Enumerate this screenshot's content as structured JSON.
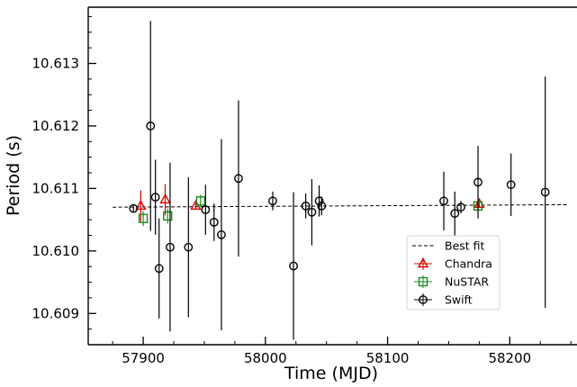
{
  "chart_data": {
    "type": "scatter",
    "xlabel": "Time (MJD)",
    "ylabel": "Period (s)",
    "xlim": [
      57855,
      58255
    ],
    "ylim": [
      10.6085,
      10.6139
    ],
    "x_ticks": [
      57900,
      58000,
      58100,
      58200
    ],
    "y_ticks": [
      10.609,
      10.61,
      10.611,
      10.612,
      10.613
    ],
    "grid": false,
    "legend_position": "lower-right",
    "best_fit": {
      "name": "Best fit",
      "x": [
        57875,
        58247
      ],
      "y": [
        10.6107,
        10.61074
      ],
      "color": "#000000"
    },
    "series": [
      {
        "name": "Chandra",
        "marker": "triangle",
        "color": "#e00000",
        "points": [
          {
            "x": 57898,
            "y": 10.61072,
            "err": 0.00025
          },
          {
            "x": 57918,
            "y": 10.61082,
            "err": 0.00025
          },
          {
            "x": 57943,
            "y": 10.61072,
            "err": 5e-05
          },
          {
            "x": 58175,
            "y": 10.61075,
            "err": 5e-05
          }
        ]
      },
      {
        "name": "NuSTAR",
        "marker": "square",
        "color": "#1a8a1a",
        "points": [
          {
            "x": 57900,
            "y": 10.61052,
            "err": 0.00012
          },
          {
            "x": 57920,
            "y": 10.61056,
            "err": 0.00012
          },
          {
            "x": 57947,
            "y": 10.6108,
            "err": 0.0001
          },
          {
            "x": 58174,
            "y": 10.61072,
            "err": 4e-05
          }
        ]
      },
      {
        "name": "Swift",
        "marker": "circle",
        "color": "#000000",
        "points": [
          {
            "x": 57892,
            "y": 10.61068,
            "err": 5e-05
          },
          {
            "x": 57906,
            "y": 10.612,
            "err": 0.00168
          },
          {
            "x": 57910,
            "y": 10.61086,
            "err": 0.0006
          },
          {
            "x": 57913,
            "y": 10.60972,
            "err": 0.0008
          },
          {
            "x": 57922,
            "y": 10.61006,
            "err": 0.00135
          },
          {
            "x": 57937,
            "y": 10.61006,
            "err": 0.00112
          },
          {
            "x": 57951,
            "y": 10.61066,
            "err": 0.0004
          },
          {
            "x": 57958,
            "y": 10.61046,
            "err": 0.0003
          },
          {
            "x": 57964,
            "y": 10.61026,
            "err": 0.00153
          },
          {
            "x": 57978,
            "y": 10.61116,
            "err": 0.00125
          },
          {
            "x": 58006,
            "y": 10.6108,
            "err": 0.00015
          },
          {
            "x": 58023,
            "y": 10.60976,
            "err": 0.00118
          },
          {
            "x": 58033,
            "y": 10.61072,
            "err": 0.0002
          },
          {
            "x": 58038,
            "y": 10.61062,
            "err": 0.00053
          },
          {
            "x": 58044,
            "y": 10.6108,
            "err": 0.00025
          },
          {
            "x": 58046,
            "y": 10.61072,
            "err": 0.00015
          },
          {
            "x": 58146,
            "y": 10.6108,
            "err": 0.00047
          },
          {
            "x": 58155,
            "y": 10.6106,
            "err": 0.00035
          },
          {
            "x": 58160,
            "y": 10.6107,
            "err": 0.0001
          },
          {
            "x": 58174,
            "y": 10.6111,
            "err": 0.00058
          },
          {
            "x": 58201,
            "y": 10.61106,
            "err": 0.0005
          },
          {
            "x": 58229,
            "y": 10.61094,
            "err": 0.00185
          }
        ]
      }
    ]
  }
}
